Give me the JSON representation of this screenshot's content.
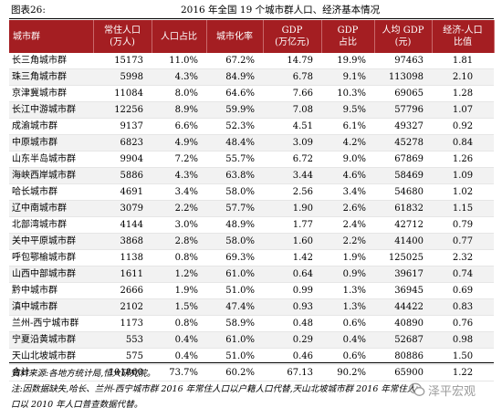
{
  "figure_label": "图表26:",
  "title": "2016 年全国 19 个城市群人口、经济基本情况",
  "columns": [
    "城市群",
    "常住人口\n(万人)",
    "人口占比",
    "城市化率",
    "GDP\n(万亿元)",
    "GDP\n占比",
    "人均 GDP\n(元)",
    "经济-人口\n比值"
  ],
  "rows": [
    [
      "长三角城市群",
      "15173",
      "11.0%",
      "67.2%",
      "14.79",
      "19.9%",
      "97463",
      "1.81"
    ],
    [
      "珠三角城市群",
      "5998",
      "4.3%",
      "84.9%",
      "6.78",
      "9.1%",
      "113098",
      "2.10"
    ],
    [
      "京津冀城市群",
      "11084",
      "8.0%",
      "64.6%",
      "7.66",
      "10.3%",
      "69065",
      "1.28"
    ],
    [
      "长江中游城市群",
      "12256",
      "8.9%",
      "59.9%",
      "7.08",
      "9.5%",
      "57796",
      "1.07"
    ],
    [
      "成渝城市群",
      "9137",
      "6.6%",
      "52.3%",
      "4.51",
      "6.1%",
      "49327",
      "0.92"
    ],
    [
      "中原城市群",
      "6823",
      "4.9%",
      "48.4%",
      "3.09",
      "4.2%",
      "45278",
      "0.84"
    ],
    [
      "山东半岛城市群",
      "9904",
      "7.2%",
      "55.7%",
      "6.72",
      "9.0%",
      "67869",
      "1.26"
    ],
    [
      "海峡西岸城市群",
      "5886",
      "4.3%",
      "63.8%",
      "3.44",
      "4.6%",
      "58469",
      "1.09"
    ],
    [
      "哈长城市群",
      "4691",
      "3.4%",
      "58.0%",
      "2.56",
      "3.4%",
      "54680",
      "1.02"
    ],
    [
      "辽中南城市群",
      "3079",
      "2.2%",
      "57.7%",
      "1.90",
      "2.6%",
      "61832",
      "1.15"
    ],
    [
      "北部湾城市群",
      "4144",
      "3.0%",
      "48.9%",
      "1.77",
      "2.4%",
      "42712",
      "0.79"
    ],
    [
      "关中平原城市群",
      "3868",
      "2.8%",
      "58.0%",
      "1.60",
      "2.2%",
      "41400",
      "0.77"
    ],
    [
      "呼包鄂榆城市群",
      "1138",
      "0.8%",
      "69.3%",
      "1.42",
      "1.9%",
      "125025",
      "2.32"
    ],
    [
      "山西中部城市群",
      "1611",
      "1.2%",
      "61.0%",
      "0.64",
      "0.9%",
      "39617",
      "0.74"
    ],
    [
      "黔中城市群",
      "2666",
      "1.9%",
      "51.0%",
      "0.99",
      "1.3%",
      "36945",
      "0.69"
    ],
    [
      "滇中城市群",
      "2102",
      "1.5%",
      "47.4%",
      "0.93",
      "1.3%",
      "44422",
      "0.83"
    ],
    [
      "兰州-西宁城市群",
      "1173",
      "0.8%",
      "58.9%",
      "0.48",
      "0.6%",
      "40890",
      "0.76"
    ],
    [
      "宁夏沿黄城市群",
      "553",
      "0.4%",
      "61.0%",
      "0.29",
      "0.4%",
      "52687",
      "0.98"
    ],
    [
      "天山北坡城市群",
      "575",
      "0.4%",
      "51.0%",
      "0.46",
      "0.6%",
      "80886",
      "1.50"
    ]
  ],
  "total_row": [
    "合计",
    "101860",
    "73.7%",
    "60.2%",
    "67.13",
    "90.2%",
    "65900",
    "1.22"
  ],
  "notes": {
    "source": "资料来源:各地方统计局,恒大研究院。",
    "note_line1": "注:因数据缺失,哈长、兰州-西宁城市群 2016 年常住人口以户籍人口代替,天山北坡城市群 2016 年常住人",
    "note_line2": "口以 2010 年人口普查数据代替。"
  },
  "watermark": {
    "text": "泽平宏观",
    "icon": "wechat-icon"
  },
  "colors": {
    "header_bg": "#a41e22",
    "header_text": "#ffffff",
    "alt_row_bg": "#f2f2f2"
  }
}
